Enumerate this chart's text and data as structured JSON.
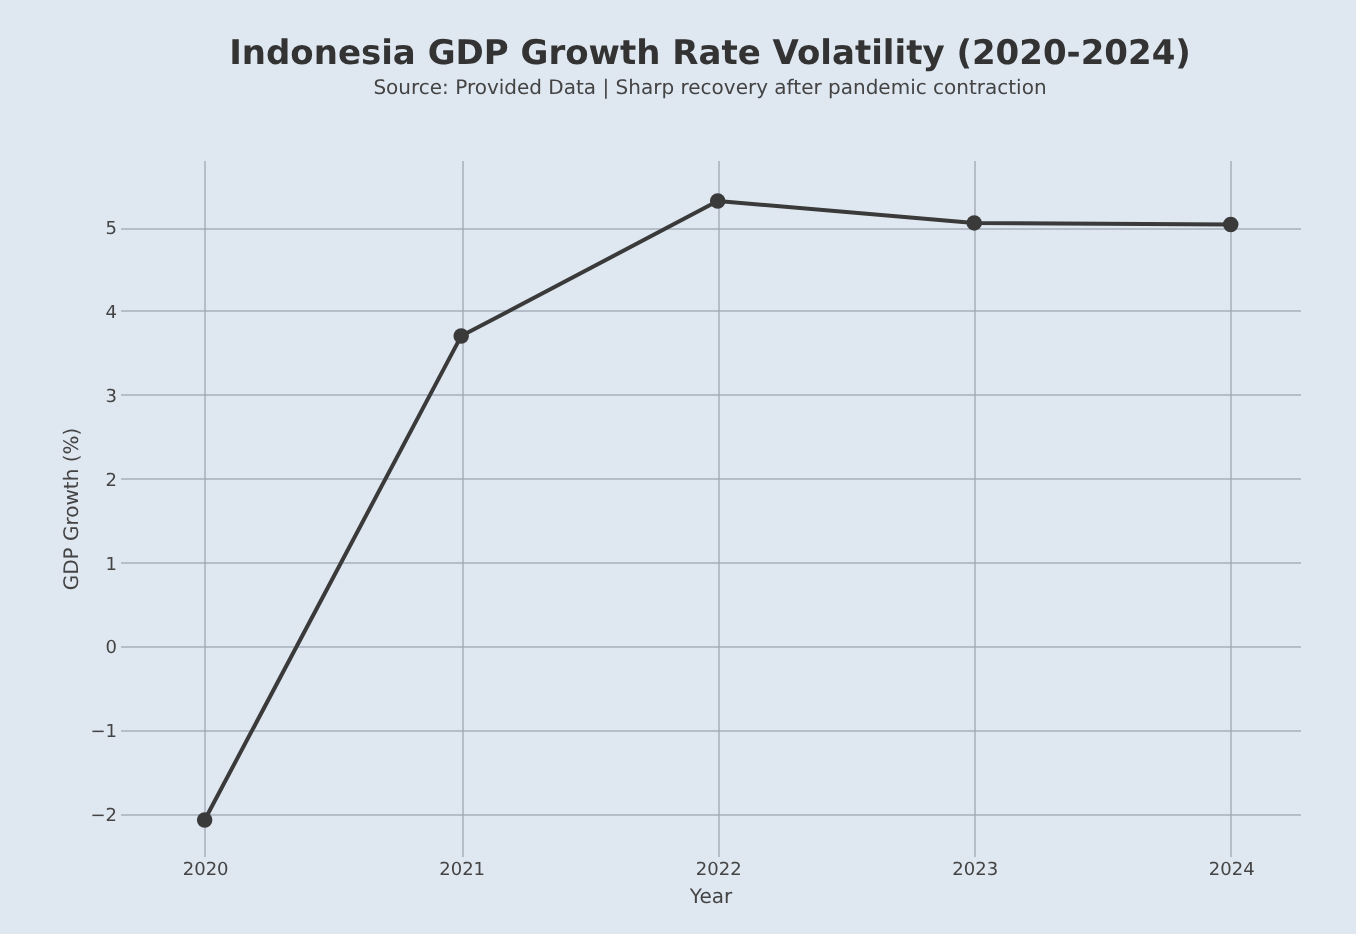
{
  "chart_data": {
    "type": "line",
    "title": "Indonesia GDP Growth Rate Volatility (2020-2024)",
    "subtitle": "Source: Provided Data | Sharp recovery after pandemic contraction",
    "xlabel": "Year",
    "ylabel": "GDP Growth (%)",
    "x": [
      2020,
      2021,
      2022,
      2023,
      2024
    ],
    "series": [
      {
        "color": "#3a3a3a",
        "values": [
          -2.07,
          3.7,
          5.31,
          5.05,
          5.03
        ]
      }
    ],
    "xlim": [
      2019.67,
      2024.27
    ],
    "xticks": [
      2020,
      2021,
      2022,
      2023,
      2024
    ],
    "ylim": [
      -2.5,
      5.8
    ],
    "yticks": [
      -2,
      -1,
      0,
      1,
      2,
      3,
      4,
      5
    ],
    "grid": true,
    "marker": "circle",
    "line_style": "solid"
  }
}
